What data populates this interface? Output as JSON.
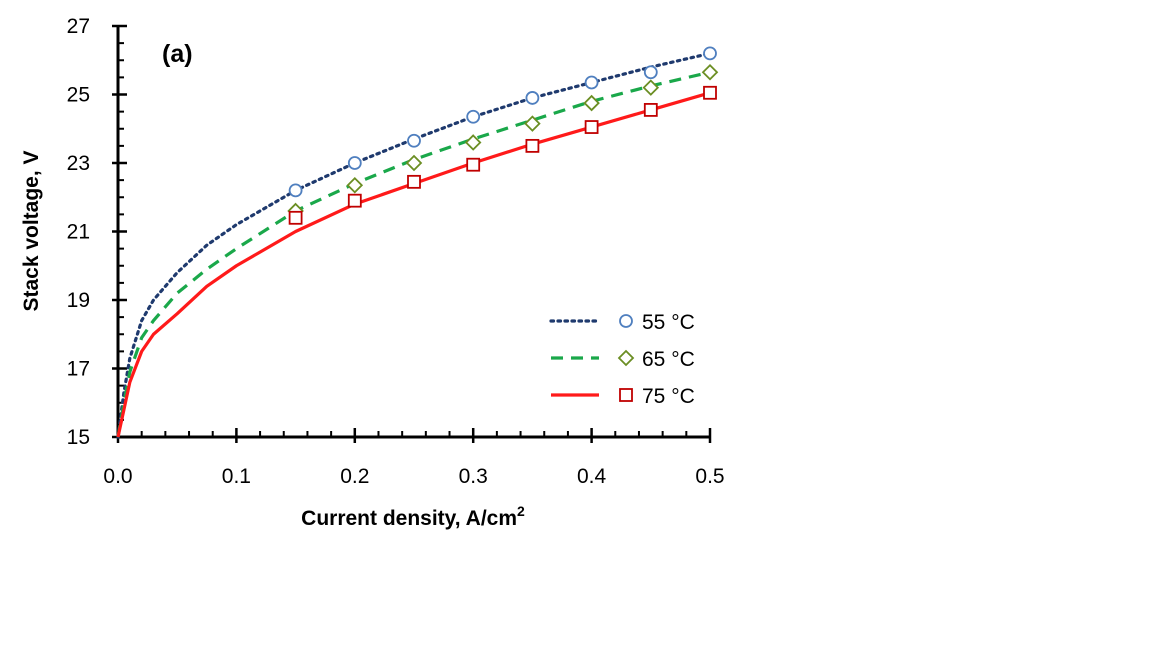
{
  "chart_data": {
    "type": "line",
    "panel_label": "(a)",
    "xlabel": "Current density, A/cm",
    "xlabel_sup": "2",
    "ylabel": "Stack voltage, V",
    "xlim": [
      0,
      0.5
    ],
    "ylim": [
      15,
      27
    ],
    "x_ticks": [
      "0.0",
      "0.1",
      "0.2",
      "0.3",
      "0.4",
      "0.5"
    ],
    "x_tick_values": [
      0,
      0.1,
      0.2,
      0.3,
      0.4,
      0.5
    ],
    "y_ticks": [
      "15",
      "17",
      "19",
      "21",
      "23",
      "25",
      "27"
    ],
    "y_tick_values": [
      15,
      17,
      19,
      21,
      23,
      25,
      27
    ],
    "grid": false,
    "legend_position": "right",
    "series": [
      {
        "name": "55 °C",
        "color": "#1f3a6e",
        "line_style": "dotted",
        "marker": "circle",
        "marker_color": "#4f7fbf",
        "line_x": [
          0,
          0.005,
          0.01,
          0.02,
          0.03,
          0.05,
          0.075,
          0.1,
          0.15,
          0.2,
          0.25,
          0.3,
          0.35,
          0.4,
          0.45,
          0.5
        ],
        "line_y": [
          15.0,
          16.3,
          17.3,
          18.4,
          19.0,
          19.8,
          20.6,
          21.2,
          22.2,
          23.0,
          23.7,
          24.35,
          24.9,
          25.35,
          25.8,
          26.2
        ],
        "points_x": [
          0.15,
          0.2,
          0.25,
          0.3,
          0.35,
          0.4,
          0.45,
          0.5
        ],
        "points_y": [
          22.2,
          23.0,
          23.65,
          24.35,
          24.9,
          25.35,
          25.65,
          26.2
        ]
      },
      {
        "name": "65 °C",
        "color": "#1aa84a",
        "line_style": "dashed",
        "marker": "diamond",
        "marker_color": "#6b8e23",
        "line_x": [
          0,
          0.005,
          0.01,
          0.02,
          0.03,
          0.05,
          0.075,
          0.1,
          0.15,
          0.2,
          0.25,
          0.3,
          0.35,
          0.4,
          0.45,
          0.5
        ],
        "line_y": [
          15.0,
          16.0,
          16.9,
          17.9,
          18.4,
          19.2,
          19.9,
          20.5,
          21.6,
          22.4,
          23.1,
          23.7,
          24.25,
          24.8,
          25.25,
          25.65
        ],
        "points_x": [
          0.15,
          0.2,
          0.25,
          0.3,
          0.35,
          0.4,
          0.45,
          0.5
        ],
        "points_y": [
          21.6,
          22.35,
          23.0,
          23.6,
          24.15,
          24.75,
          25.2,
          25.65
        ]
      },
      {
        "name": "75 °C",
        "color": "#ff1a1a",
        "line_style": "solid",
        "marker": "square",
        "marker_color": "#c00000",
        "line_x": [
          0,
          0.005,
          0.01,
          0.02,
          0.03,
          0.05,
          0.075,
          0.1,
          0.15,
          0.2,
          0.25,
          0.3,
          0.35,
          0.4,
          0.45,
          0.5
        ],
        "line_y": [
          15.0,
          15.8,
          16.6,
          17.5,
          18.0,
          18.6,
          19.4,
          20.0,
          21.0,
          21.8,
          22.4,
          23.0,
          23.55,
          24.05,
          24.55,
          25.05
        ],
        "points_x": [
          0.15,
          0.2,
          0.25,
          0.3,
          0.35,
          0.4,
          0.45,
          0.5
        ],
        "points_y": [
          21.4,
          21.9,
          22.45,
          22.95,
          23.5,
          24.05,
          24.55,
          25.05
        ]
      }
    ]
  }
}
